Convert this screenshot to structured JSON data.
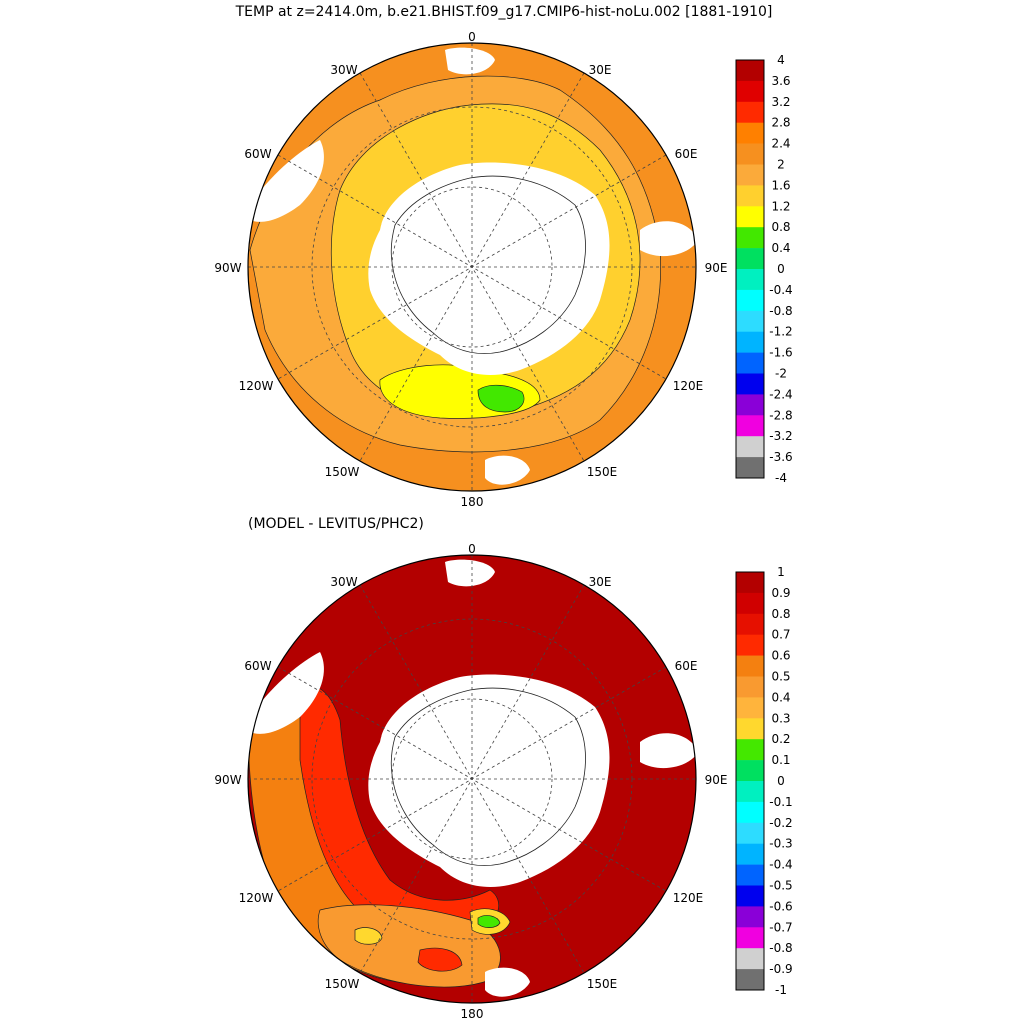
{
  "top_panel": {
    "title": "TEMP at z=2414.0m, b.e21.BHIST.f09_g17.CMIP6-hist-noLu.002 [1881-1910]",
    "lon_labels": [
      "0",
      "30E",
      "60E",
      "90E",
      "120E",
      "150E",
      "180",
      "150W",
      "120W",
      "90W",
      "60W",
      "30W"
    ],
    "colorbar": {
      "labels": [
        "4",
        "3.6",
        "3.2",
        "2.8",
        "2.4",
        "2",
        "1.6",
        "1.2",
        "0.8",
        "0.4",
        "0",
        "-0.4",
        "-0.8",
        "-1.2",
        "-1.6",
        "-2",
        "-2.4",
        "-2.8",
        "-3.2",
        "-3.6",
        "-4"
      ],
      "colors": [
        "#b30000",
        "#e00000",
        "#ff2a00",
        "#ff8000",
        "#f6901f",
        "#fbaa3a",
        "#ffd02e",
        "#ffff00",
        "#42e800",
        "#00e060",
        "#00f0c0",
        "#00ffff",
        "#2ddcff",
        "#00b4ff",
        "#0064ff",
        "#0000ee",
        "#8a00d8",
        "#f000e0",
        "#d0d0d0",
        "#707070"
      ]
    }
  },
  "bottom_panel": {
    "title": "(MODEL - LEVITUS/PHC2)",
    "lon_labels": [
      "0",
      "30E",
      "60E",
      "90E",
      "120E",
      "150E",
      "180",
      "150W",
      "120W",
      "90W",
      "60W",
      "30W"
    ],
    "colorbar": {
      "labels": [
        "1",
        "0.9",
        "0.8",
        "0.7",
        "0.6",
        "0.5",
        "0.4",
        "0.3",
        "0.2",
        "0.1",
        "0",
        "-0.1",
        "-0.2",
        "-0.3",
        "-0.4",
        "-0.5",
        "-0.6",
        "-0.7",
        "-0.8",
        "-0.9",
        "-1"
      ],
      "colors": [
        "#b30000",
        "#d00000",
        "#e61000",
        "#ff2a00",
        "#f48010",
        "#f99a30",
        "#ffb43c",
        "#ffd82e",
        "#44e800",
        "#00e060",
        "#00f0c0",
        "#00ffff",
        "#2ddcff",
        "#00b4ff",
        "#0064ff",
        "#0000ee",
        "#8a00d8",
        "#f000e0",
        "#d0d0d0",
        "#707070"
      ]
    }
  }
}
